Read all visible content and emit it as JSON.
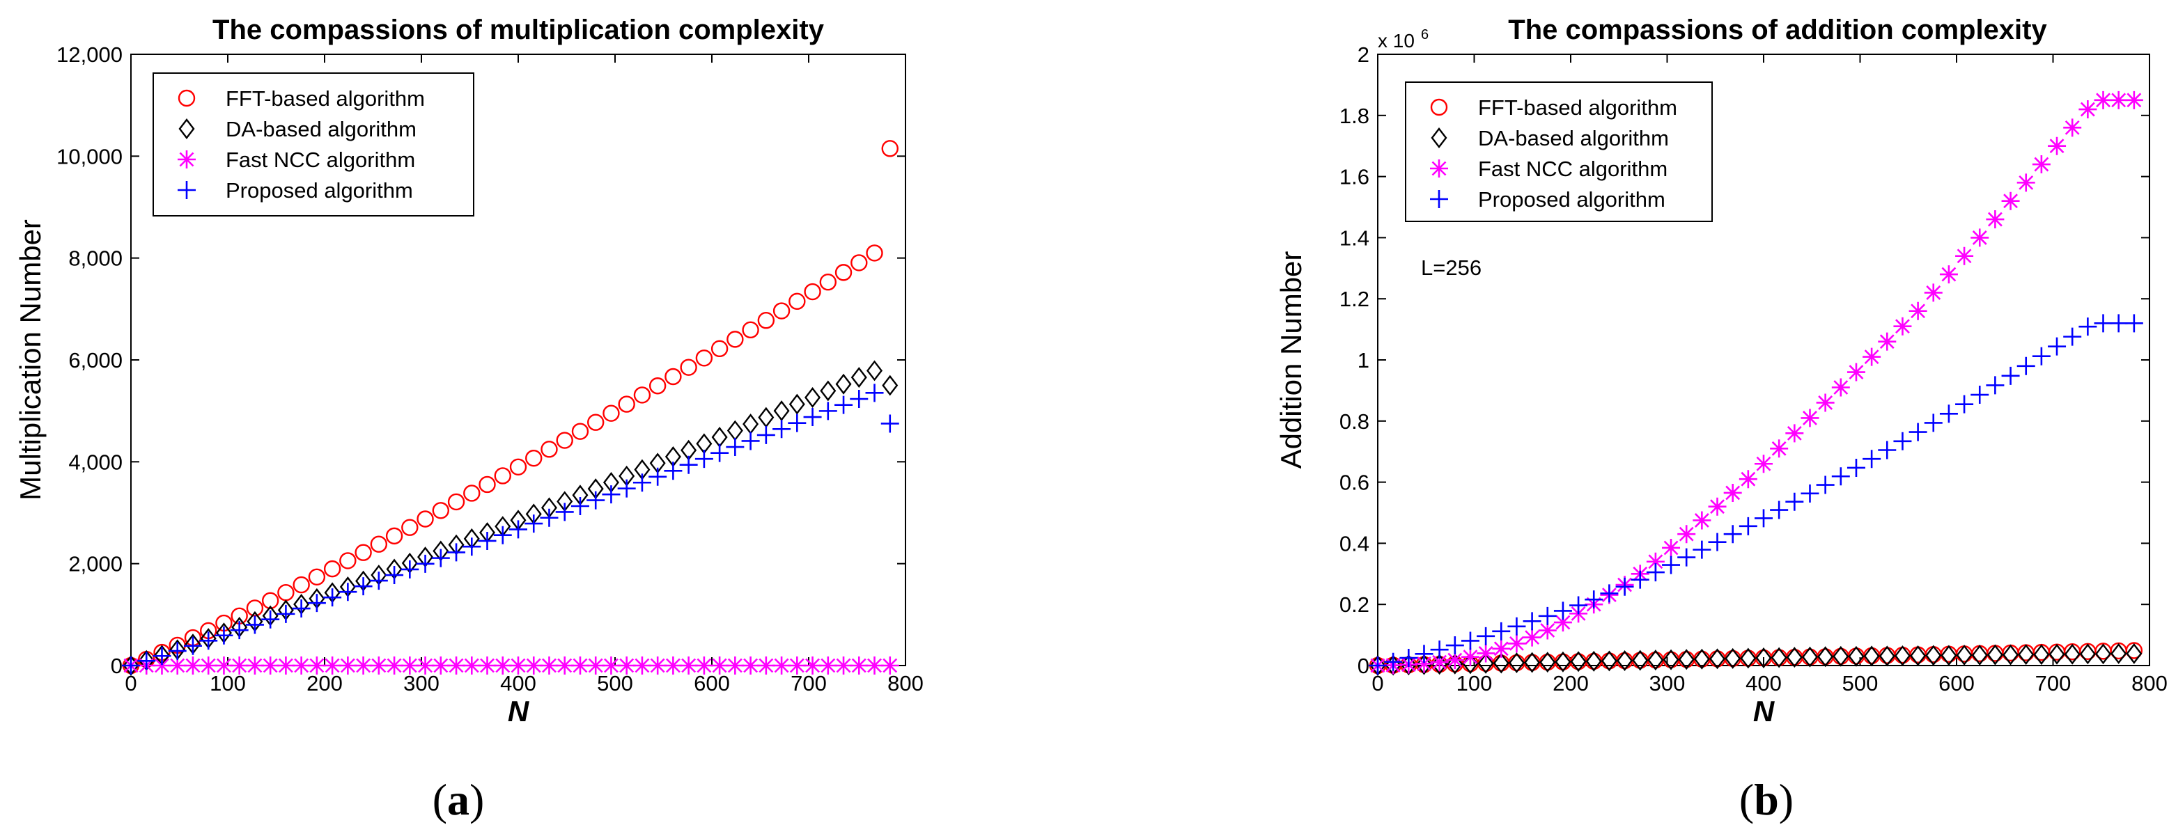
{
  "chart_data": [
    {
      "type": "scatter",
      "panel": "a",
      "caption_letter": "a",
      "title": "The compassions of multiplication complexity",
      "xlabel": "N",
      "ylabel": "Multiplication Number",
      "xlim": [
        0,
        800
      ],
      "ylim": [
        0,
        12000
      ],
      "xticks": [
        0,
        100,
        200,
        300,
        400,
        500,
        600,
        700,
        800
      ],
      "xtick_labels": [
        "0",
        "100",
        "200",
        "300",
        "400",
        "500",
        "600",
        "700",
        "800"
      ],
      "yticks": [
        0,
        2000,
        4000,
        6000,
        8000,
        10000,
        12000
      ],
      "ytick_labels": [
        "0",
        "2,000",
        "4,000",
        "6,000",
        "8,000",
        "10,000",
        "12,000"
      ],
      "grid": false,
      "legend_position": "top-left",
      "x": [
        0,
        16,
        32,
        48,
        64,
        80,
        96,
        112,
        128,
        144,
        160,
        176,
        192,
        208,
        224,
        240,
        256,
        272,
        288,
        304,
        320,
        336,
        352,
        368,
        384,
        400,
        416,
        432,
        448,
        464,
        480,
        496,
        512,
        528,
        544,
        560,
        576,
        592,
        608,
        624,
        640,
        656,
        672,
        688,
        704,
        720,
        736,
        752,
        768,
        784
      ],
      "series": [
        {
          "name": "FFT-based algorithm",
          "marker": "circle",
          "color": "#ff0000",
          "values": [
            0,
            120,
            258,
            397,
            546,
            684,
            833,
            973,
            1128,
            1274,
            1432,
            1584,
            1739,
            1898,
            2058,
            2218,
            2382,
            2544,
            2710,
            2877,
            3044,
            3213,
            3383,
            3554,
            3725,
            3898,
            4071,
            4246,
            4421,
            4597,
            4774,
            4952,
            5131,
            5311,
            5491,
            5672,
            5854,
            6037,
            6221,
            6405,
            6590,
            6776,
            6963,
            7150,
            7339,
            7528,
            7717,
            7908,
            8099,
            10150
          ]
        },
        {
          "name": "DA-based algorithm",
          "marker": "diamond",
          "color": "#000000",
          "values": [
            0,
            100,
            200,
            310,
            420,
            532,
            640,
            752,
            864,
            976,
            1088,
            1203,
            1314,
            1430,
            1545,
            1659,
            1776,
            1893,
            2011,
            2130,
            2249,
            2369,
            2489,
            2610,
            2731,
            2853,
            2975,
            3098,
            3221,
            3345,
            3470,
            3595,
            3720,
            3846,
            3973,
            4100,
            4227,
            4355,
            4483,
            4612,
            4741,
            4871,
            5001,
            5131,
            5262,
            5393,
            5525,
            5657,
            5789,
            5500
          ]
        },
        {
          "name": "Fast NCC algorithm",
          "marker": "star",
          "color": "#ff00ff",
          "values": [
            0,
            0,
            0,
            0,
            0,
            0,
            0,
            0,
            0,
            0,
            0,
            0,
            0,
            0,
            0,
            0,
            0,
            0,
            0,
            0,
            0,
            0,
            0,
            0,
            0,
            0,
            0,
            0,
            0,
            0,
            0,
            0,
            0,
            0,
            0,
            0,
            0,
            0,
            0,
            0,
            0,
            0,
            0,
            0,
            0,
            0,
            0,
            0,
            0,
            0
          ]
        },
        {
          "name": "Proposed algorithm",
          "marker": "plus",
          "color": "#0000ff",
          "values": [
            0,
            92,
            188,
            286,
            386,
            488,
            591,
            695,
            800,
            906,
            1013,
            1120,
            1228,
            1337,
            1446,
            1556,
            1666,
            1776,
            1887,
            1998,
            2110,
            2222,
            2334,
            2447,
            2560,
            2673,
            2787,
            2901,
            3015,
            3130,
            3245,
            3360,
            3476,
            3591,
            3707,
            3823,
            3940,
            4057,
            4173,
            4291,
            4408,
            4525,
            4643,
            4761,
            4879,
            4997,
            5116,
            5234,
            5353,
            4750
          ]
        }
      ]
    },
    {
      "type": "scatter",
      "panel": "b",
      "caption_letter": "b",
      "title": "The compassions of addition complexity",
      "xlabel": "N",
      "ylabel": "Addition Number",
      "y_exponent_base": "x 10",
      "y_exponent_power": "6",
      "annotation": "L=256",
      "xlim": [
        0,
        800
      ],
      "ylim": [
        0,
        2
      ],
      "xticks": [
        0,
        100,
        200,
        300,
        400,
        500,
        600,
        700,
        800
      ],
      "xtick_labels": [
        "0",
        "100",
        "200",
        "300",
        "400",
        "500",
        "600",
        "700",
        "800"
      ],
      "yticks": [
        0,
        0.2,
        0.4,
        0.6,
        0.8,
        1,
        1.2,
        1.4,
        1.6,
        1.8,
        2
      ],
      "ytick_labels": [
        "0",
        "0.2",
        "0.4",
        "0.6",
        "0.8",
        "1",
        "1.2",
        "1.4",
        "1.6",
        "1.8",
        "2"
      ],
      "grid": false,
      "legend_position": "top-left",
      "x": [
        0,
        16,
        32,
        48,
        64,
        80,
        96,
        112,
        128,
        144,
        160,
        176,
        192,
        208,
        224,
        240,
        256,
        272,
        288,
        304,
        320,
        336,
        352,
        368,
        384,
        400,
        416,
        432,
        448,
        464,
        480,
        496,
        512,
        528,
        544,
        560,
        576,
        592,
        608,
        624,
        640,
        656,
        672,
        688,
        704,
        720,
        736,
        752,
        768,
        784
      ],
      "series": [
        {
          "name": "FFT-based algorithm",
          "marker": "circle",
          "color": "#ff0000",
          "values": [
            0,
            0.001,
            0.002,
            0.003,
            0.004,
            0.005,
            0.006,
            0.007,
            0.008,
            0.009,
            0.01,
            0.011,
            0.012,
            0.013,
            0.014,
            0.015,
            0.016,
            0.017,
            0.018,
            0.019,
            0.02,
            0.021,
            0.022,
            0.023,
            0.024,
            0.025,
            0.026,
            0.027,
            0.028,
            0.029,
            0.03,
            0.031,
            0.032,
            0.033,
            0.034,
            0.035,
            0.036,
            0.037,
            0.038,
            0.039,
            0.04,
            0.041,
            0.042,
            0.043,
            0.044,
            0.045,
            0.046,
            0.047,
            0.048,
            0.049
          ]
        },
        {
          "name": "DA-based algorithm",
          "marker": "diamond",
          "color": "#000000",
          "values": [
            0,
            0.001,
            0.002,
            0.003,
            0.004,
            0.005,
            0.006,
            0.007,
            0.008,
            0.009,
            0.01,
            0.011,
            0.012,
            0.013,
            0.014,
            0.015,
            0.016,
            0.017,
            0.018,
            0.019,
            0.02,
            0.021,
            0.022,
            0.023,
            0.024,
            0.025,
            0.026,
            0.027,
            0.028,
            0.029,
            0.03,
            0.03,
            0.031,
            0.031,
            0.032,
            0.032,
            0.033,
            0.033,
            0.034,
            0.034,
            0.035,
            0.035,
            0.036,
            0.036,
            0.037,
            0.037,
            0.038,
            0.038,
            0.039,
            0.039
          ]
        },
        {
          "name": "Fast NCC algorithm",
          "marker": "star",
          "color": "#ff00ff",
          "values": [
            0,
            0.001,
            0.003,
            0.006,
            0.011,
            0.018,
            0.028,
            0.04,
            0.055,
            0.072,
            0.092,
            0.115,
            0.141,
            0.17,
            0.2,
            0.231,
            0.264,
            0.3,
            0.34,
            0.385,
            0.43,
            0.475,
            0.52,
            0.565,
            0.61,
            0.66,
            0.71,
            0.76,
            0.81,
            0.86,
            0.91,
            0.96,
            1.01,
            1.06,
            1.11,
            1.16,
            1.22,
            1.28,
            1.34,
            1.4,
            1.46,
            1.52,
            1.58,
            1.64,
            1.7,
            1.76,
            1.82,
            1.85,
            1.85,
            1.85
          ]
        },
        {
          "name": "Proposed algorithm",
          "marker": "plus",
          "color": "#0000ff",
          "values": [
            0,
            0.012,
            0.025,
            0.038,
            0.052,
            0.066,
            0.081,
            0.096,
            0.112,
            0.128,
            0.145,
            0.162,
            0.179,
            0.197,
            0.216,
            0.236,
            0.258,
            0.281,
            0.305,
            0.329,
            0.354,
            0.379,
            0.404,
            0.43,
            0.456,
            0.482,
            0.509,
            0.536,
            0.563,
            0.591,
            0.619,
            0.647,
            0.676,
            0.705,
            0.734,
            0.764,
            0.794,
            0.824,
            0.855,
            0.886,
            0.917,
            0.948,
            0.98,
            1.012,
            1.044,
            1.076,
            1.109,
            1.12,
            1.12,
            1.12
          ]
        }
      ]
    }
  ]
}
